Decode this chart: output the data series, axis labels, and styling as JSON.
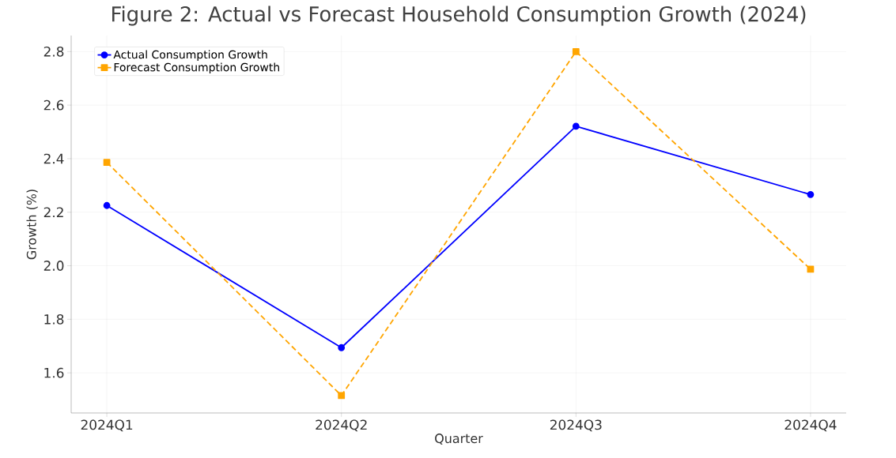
{
  "chart_data": {
    "type": "line",
    "title": "Figure 2: Actual vs Forecast Household Consumption Growth (2024)",
    "xlabel": "Quarter",
    "ylabel": "Growth (%)",
    "categories": [
      "2024Q1",
      "2024Q2",
      "2024Q3",
      "2024Q4"
    ],
    "series": [
      {
        "name": "Actual Consumption Growth",
        "color": "#0000ff",
        "values": [
          2.225,
          1.694,
          2.521,
          2.266
        ],
        "marker": "circle",
        "line_style": "solid"
      },
      {
        "name": "Forecast Consumption Growth",
        "color": "#ffa500",
        "values": [
          2.386,
          1.515,
          2.8,
          1.987
        ],
        "marker": "square",
        "line_style": "dashed"
      }
    ],
    "ylim": [
      1.45,
      2.86
    ],
    "yticks": [
      1.6,
      1.8,
      {
        "value": 2.0,
        "label": "2.0"
      },
      2.2,
      2.4,
      2.6,
      2.8
    ],
    "grid": true,
    "legend": "top left"
  }
}
